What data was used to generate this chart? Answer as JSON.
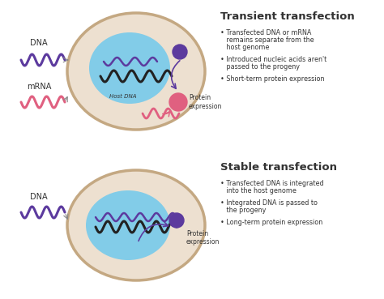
{
  "bg_color": "#ffffff",
  "cell_outer_color": "#c4a882",
  "cell_inner_color": "#ede0d0",
  "nucleus_color": "#82cce8",
  "dna_purple_color": "#5c3a9e",
  "dna_pink_color": "#e06080",
  "dna_dark_color": "#222222",
  "protein_pink_color": "#e06080",
  "protein_purple_color": "#5c3a9e",
  "arrow_color": "#5c3a9e",
  "arrow_gray_color": "#888888",
  "text_color": "#333333",
  "title_transient": "Transient transfection",
  "title_stable": "Stable transfection",
  "bullet1_transient": "Transfected DNA or mRNA\nremains separate from the\nhost genome",
  "bullet2_transient": "Introduced nucleic acids aren't\npassed to the progeny",
  "bullet3_transient": "Short-term protein expression",
  "bullet1_stable": "Transfected DNA is integrated\ninto the host genome",
  "bullet2_stable": "Integrated DNA is passed to\nthe progeny",
  "bullet3_stable": "Long-term protein expression",
  "label_dna": "DNA",
  "label_mrna": "mRNA",
  "label_host_dna": "Host DNA",
  "label_protein_expression": "Protein\nexpression"
}
